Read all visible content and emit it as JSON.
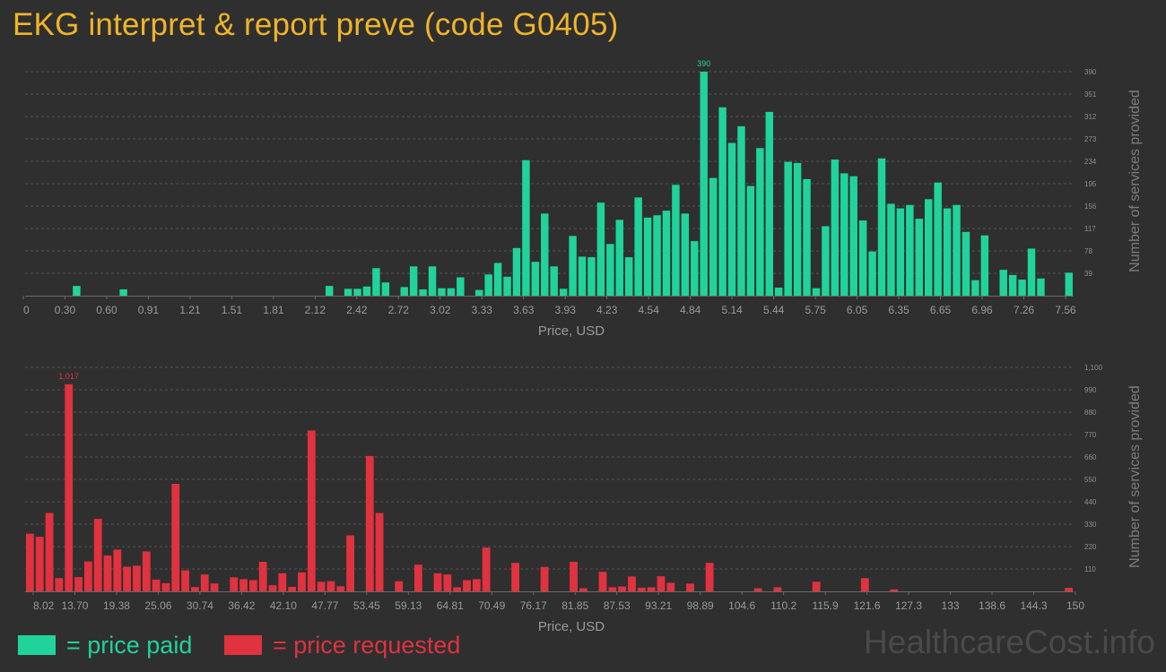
{
  "title": "EKG interpret & report preve (code G0405)",
  "colors": {
    "paid": "#20d39a",
    "requested": "#e0323f",
    "title": "#f0b429"
  },
  "legend": {
    "paid": "= price paid",
    "requested": "= price requested"
  },
  "watermark": "HealthcareCost.info",
  "chart_data": [
    {
      "type": "bar",
      "name": "price paid histogram",
      "xlabel": "Price, USD",
      "ylabel": "Number of services provided",
      "ylim": [
        0,
        400
      ],
      "xlim": [
        0,
        7.56
      ],
      "x_ticks": [
        "0",
        "0.30",
        "0.60",
        "0.91",
        "1.21",
        "1.51",
        "1.81",
        "2.12",
        "2.42",
        "2.72",
        "3.02",
        "3.33",
        "3.63",
        "3.93",
        "4.23",
        "4.54",
        "4.84",
        "5.14",
        "5.44",
        "5.75",
        "6.05",
        "6.35",
        "6.65",
        "6.96",
        "7.26",
        "7.56"
      ],
      "y_ticks": [
        "39",
        "78",
        "117",
        "156",
        "195",
        "234",
        "273",
        "312",
        "351",
        "390"
      ],
      "peak_label": "390",
      "values": [
        0,
        0,
        0,
        0,
        0,
        17,
        0,
        0,
        0,
        0,
        11,
        0,
        0,
        0,
        0,
        0,
        0,
        0,
        0,
        0,
        0,
        0,
        0,
        0,
        0,
        0,
        0,
        0,
        0,
        0,
        0,
        0,
        17,
        0,
        12,
        12,
        16,
        48,
        23,
        0,
        15,
        51,
        11,
        51,
        13,
        13,
        32,
        0,
        10,
        37,
        57,
        33,
        83,
        236,
        59,
        143,
        51,
        12,
        104,
        68,
        67,
        162,
        90,
        132,
        67,
        171,
        136,
        140,
        148,
        193,
        143,
        95,
        390,
        205,
        328,
        266,
        295,
        191,
        257,
        320,
        14,
        233,
        231,
        203,
        13,
        121,
        237,
        213,
        208,
        131,
        77,
        239,
        160,
        152,
        158,
        134,
        168,
        197,
        152,
        158,
        111,
        27,
        105,
        0,
        45,
        36,
        28,
        82,
        30,
        0,
        0,
        40
      ]
    },
    {
      "type": "bar",
      "name": "price requested histogram",
      "xlabel": "Price, USD",
      "ylabel": "Number of services provided",
      "ylim": [
        0,
        1100
      ],
      "xlim": [
        8.02,
        150
      ],
      "x_ticks": [
        "8.02",
        "13.70",
        "19.38",
        "25.06",
        "30.74",
        "36.42",
        "42.10",
        "47.77",
        "53.45",
        "59.13",
        "64.81",
        "70.49",
        "76.17",
        "81.85",
        "87.53",
        "93.21",
        "98.89",
        "104.6",
        "110.2",
        "115.9",
        "121.6",
        "127.3",
        "133",
        "138.6",
        "144.3",
        "150"
      ],
      "y_ticks": [
        "110",
        "220",
        "330",
        "440",
        "550",
        "660",
        "770",
        "880",
        "990",
        "1,100"
      ],
      "peak_label": "1,017",
      "values": [
        283,
        268,
        385,
        65,
        1017,
        70,
        147,
        356,
        176,
        205,
        121,
        126,
        196,
        58,
        40,
        528,
        103,
        21,
        83,
        39,
        0,
        69,
        60,
        55,
        145,
        30,
        89,
        22,
        93,
        790,
        47,
        50,
        25,
        275,
        0,
        665,
        385,
        0,
        50,
        0,
        131,
        0,
        89,
        83,
        20,
        55,
        60,
        215,
        0,
        0,
        140,
        0,
        0,
        120,
        0,
        0,
        145,
        15,
        0,
        96,
        20,
        24,
        73,
        18,
        20,
        74,
        42,
        0,
        38,
        0,
        140,
        0,
        0,
        0,
        0,
        15,
        0,
        20,
        0,
        0,
        0,
        47,
        0,
        0,
        0,
        0,
        65,
        0,
        0,
        10,
        0,
        0,
        0,
        0,
        0,
        0,
        0,
        0,
        0,
        0,
        0,
        0,
        0,
        0,
        0,
        0,
        0,
        17
      ]
    }
  ]
}
